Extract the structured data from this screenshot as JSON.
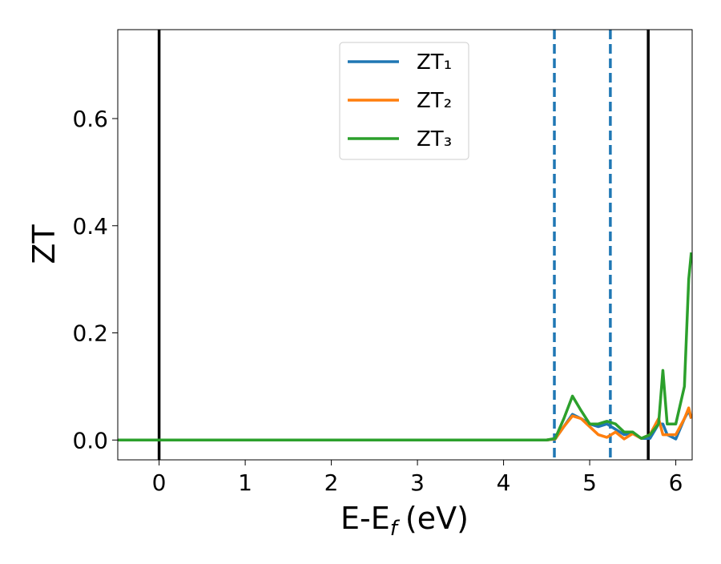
{
  "chart_data": {
    "type": "line",
    "xlabel": {
      "main": "E-E",
      "sub": "f",
      "rest": "(eV)"
    },
    "ylabel": "ZT",
    "x": [
      -0.48,
      4.5,
      4.6,
      4.7,
      4.8,
      4.9,
      5.0,
      5.1,
      5.2,
      5.3,
      5.4,
      5.5,
      5.6,
      5.7,
      5.8,
      5.85,
      5.9,
      6.0,
      6.1,
      6.15,
      6.18
    ],
    "series": [
      {
        "name": "ZT₁",
        "color": "#1f77b4",
        "values": [
          0,
          0,
          0.002,
          0.025,
          0.048,
          0.04,
          0.03,
          0.025,
          0.03,
          0.02,
          0.01,
          0.012,
          0.003,
          0.003,
          0.03,
          0.03,
          0.01,
          0.002,
          0.04,
          0.055,
          0.04
        ]
      },
      {
        "name": "ZT₂",
        "color": "#ff7f0e",
        "values": [
          0,
          0,
          0.002,
          0.025,
          0.045,
          0.04,
          0.025,
          0.01,
          0.005,
          0.015,
          0.002,
          0.012,
          0.003,
          0.01,
          0.04,
          0.01,
          0.01,
          0.01,
          0.04,
          0.06,
          0.04
        ]
      },
      {
        "name": "ZT₃",
        "color": "#2ca02c",
        "values": [
          0,
          0,
          0.003,
          0.04,
          0.082,
          0.055,
          0.03,
          0.03,
          0.035,
          0.03,
          0.015,
          0.015,
          0.003,
          0.01,
          0.03,
          0.13,
          0.03,
          0.03,
          0.1,
          0.3,
          0.35
        ]
      }
    ],
    "vlines": [
      {
        "x": 0,
        "color": "#000000",
        "style": "solid"
      },
      {
        "x": 5.68,
        "color": "#000000",
        "style": "solid"
      },
      {
        "x": 4.59,
        "color": "#1f77b4",
        "style": "dashed"
      },
      {
        "x": 5.24,
        "color": "#1f77b4",
        "style": "dashed"
      }
    ],
    "xlim": [
      -0.48,
      6.19
    ],
    "ylim": [
      -0.037,
      0.766
    ],
    "xticks": [
      0,
      1,
      2,
      3,
      4,
      5,
      6
    ],
    "yticks": [
      {
        "value": 0,
        "label": "0.0"
      },
      0.2,
      0.4,
      0.6
    ],
    "legend": "upper center"
  }
}
